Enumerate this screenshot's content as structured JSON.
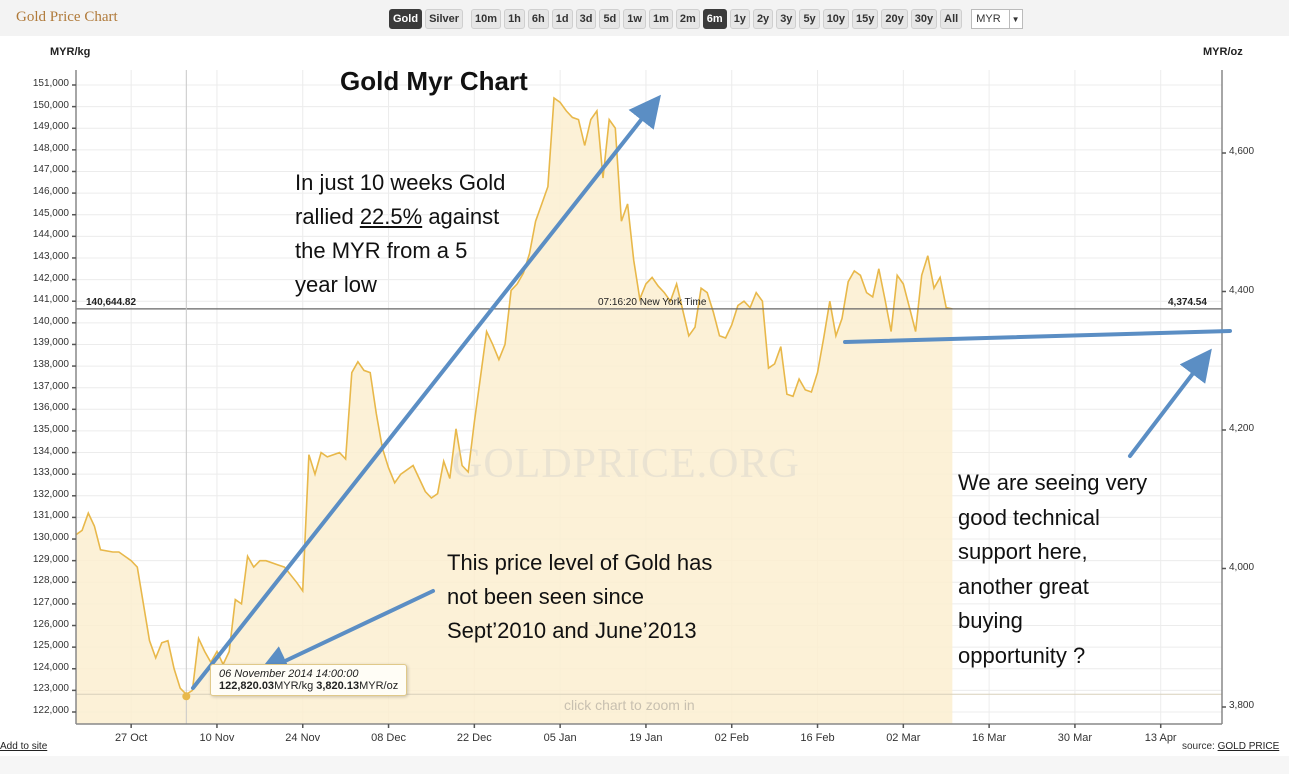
{
  "header": {
    "app_title": "Gold Price Chart",
    "metal_buttons": [
      {
        "label": "Gold",
        "active": true
      },
      {
        "label": "Silver",
        "active": false
      }
    ],
    "range_buttons": [
      {
        "label": "10m",
        "active": false
      },
      {
        "label": "1h",
        "active": false
      },
      {
        "label": "6h",
        "active": false
      },
      {
        "label": "1d",
        "active": false
      },
      {
        "label": "3d",
        "active": false
      },
      {
        "label": "5d",
        "active": false
      },
      {
        "label": "1w",
        "active": false
      },
      {
        "label": "1m",
        "active": false
      },
      {
        "label": "2m",
        "active": false
      },
      {
        "label": "6m",
        "active": true
      },
      {
        "label": "1y",
        "active": false
      },
      {
        "label": "2y",
        "active": false
      },
      {
        "label": "3y",
        "active": false
      },
      {
        "label": "5y",
        "active": false
      },
      {
        "label": "10y",
        "active": false
      },
      {
        "label": "15y",
        "active": false
      },
      {
        "label": "20y",
        "active": false
      },
      {
        "label": "30y",
        "active": false
      },
      {
        "label": "All",
        "active": false
      }
    ],
    "currency_select": "MYR",
    "caret_icon": "chevron-down-icon"
  },
  "chart_data": {
    "type": "area",
    "title": "Gold Myr Chart",
    "ylabel_left": "MYR/kg",
    "ylabel_right": "MYR/oz",
    "ylim_left": [
      121500,
      151800
    ],
    "yticks_left": [
      "151,000",
      "150,000",
      "149,000",
      "148,000",
      "147,000",
      "146,000",
      "145,000",
      "144,000",
      "143,000",
      "142,000",
      "141,000",
      "140,000",
      "139,000",
      "138,000",
      "137,000",
      "136,000",
      "135,000",
      "134,000",
      "133,000",
      "132,000",
      "131,000",
      "130,000",
      "129,000",
      "128,000",
      "127,000",
      "126,000",
      "125,000",
      "124,000",
      "123,000",
      "122,000"
    ],
    "yticks_left_values": [
      151000,
      150000,
      149000,
      148000,
      147000,
      146000,
      145000,
      144000,
      143000,
      142000,
      141000,
      140000,
      139000,
      138000,
      137000,
      136000,
      135000,
      134000,
      133000,
      132000,
      131000,
      130000,
      129000,
      128000,
      127000,
      126000,
      125000,
      124000,
      123000,
      122000
    ],
    "yticks_right": [
      "4,600",
      "4,400",
      "4,200",
      "4,000",
      "3,800"
    ],
    "yticks_right_values": [
      4600,
      4400,
      4200,
      4000,
      3800
    ],
    "xticks": [
      "27 Oct",
      "10 Nov",
      "24 Nov",
      "08 Dec",
      "22 Dec",
      "05 Jan",
      "19 Jan",
      "02 Feb",
      "16 Feb",
      "02 Mar",
      "16 Mar",
      "30 Mar",
      "13 Apr"
    ],
    "xticks_day": [
      0,
      14,
      28,
      42,
      56,
      70,
      84,
      98,
      112,
      126,
      140,
      154,
      168
    ],
    "x_range_days": [
      -9,
      178
    ],
    "grid": true,
    "series": [
      {
        "name": "Gold MYR/kg",
        "color": "#e8b84a",
        "fill": "#fcefd0",
        "points_day_value": [
          [
            -9,
            130200
          ],
          [
            -8,
            130400
          ],
          [
            -7,
            131200
          ],
          [
            -6,
            130600
          ],
          [
            -5,
            129500
          ],
          [
            -3,
            129400
          ],
          [
            -2,
            129400
          ],
          [
            0,
            129000
          ],
          [
            1,
            128700
          ],
          [
            2,
            127000
          ],
          [
            3,
            125300
          ],
          [
            4,
            124500
          ],
          [
            5,
            125200
          ],
          [
            6,
            125300
          ],
          [
            7,
            124000
          ],
          [
            8,
            123100
          ],
          [
            9,
            122820
          ],
          [
            10,
            123000
          ],
          [
            11,
            125400
          ],
          [
            12,
            124800
          ],
          [
            13,
            124300
          ],
          [
            14,
            124800
          ],
          [
            15,
            124200
          ],
          [
            16,
            124800
          ],
          [
            17,
            127200
          ],
          [
            18,
            127000
          ],
          [
            19,
            129200
          ],
          [
            20,
            128700
          ],
          [
            21,
            129000
          ],
          [
            22,
            129000
          ],
          [
            24,
            128800
          ],
          [
            25,
            128700
          ],
          [
            27,
            128000
          ],
          [
            28,
            127600
          ],
          [
            29,
            133900
          ],
          [
            30,
            133000
          ],
          [
            31,
            134000
          ],
          [
            32,
            133800
          ],
          [
            34,
            134000
          ],
          [
            35,
            133700
          ],
          [
            36,
            137700
          ],
          [
            37,
            138200
          ],
          [
            38,
            137800
          ],
          [
            39,
            137700
          ],
          [
            40,
            135800
          ],
          [
            41,
            134200
          ],
          [
            42,
            133300
          ],
          [
            43,
            132600
          ],
          [
            44,
            133000
          ],
          [
            46,
            133400
          ],
          [
            47,
            132800
          ],
          [
            48,
            132200
          ],
          [
            49,
            131900
          ],
          [
            50,
            132100
          ],
          [
            51,
            133600
          ],
          [
            52,
            132800
          ],
          [
            53,
            135100
          ],
          [
            54,
            133400
          ],
          [
            55,
            133100
          ],
          [
            56,
            135400
          ],
          [
            57,
            137500
          ],
          [
            58,
            139600
          ],
          [
            59,
            139000
          ],
          [
            60,
            138300
          ],
          [
            61,
            139000
          ],
          [
            62,
            141500
          ],
          [
            63,
            141800
          ],
          [
            64,
            142300
          ],
          [
            65,
            143200
          ],
          [
            66,
            144700
          ],
          [
            67,
            145500
          ],
          [
            68,
            146300
          ],
          [
            69,
            150400
          ],
          [
            70,
            150200
          ],
          [
            71,
            149800
          ],
          [
            72,
            149500
          ],
          [
            73,
            149400
          ],
          [
            74,
            148200
          ],
          [
            75,
            149400
          ],
          [
            76,
            149800
          ],
          [
            77,
            146700
          ],
          [
            78,
            149400
          ],
          [
            79,
            149000
          ],
          [
            80,
            144700
          ],
          [
            81,
            145500
          ],
          [
            82,
            142900
          ],
          [
            83,
            141100
          ],
          [
            84,
            141800
          ],
          [
            85,
            142100
          ],
          [
            86,
            141700
          ],
          [
            87,
            141400
          ],
          [
            88,
            141000
          ],
          [
            89,
            141800
          ],
          [
            90,
            140600
          ],
          [
            91,
            139400
          ],
          [
            92,
            139800
          ],
          [
            93,
            141600
          ],
          [
            94,
            141400
          ],
          [
            95,
            140500
          ],
          [
            96,
            139400
          ],
          [
            97,
            139300
          ],
          [
            98,
            139900
          ],
          [
            99,
            140800
          ],
          [
            100,
            141000
          ],
          [
            101,
            140700
          ],
          [
            102,
            141400
          ],
          [
            103,
            141000
          ],
          [
            104,
            137900
          ],
          [
            105,
            138100
          ],
          [
            106,
            138900
          ],
          [
            107,
            136700
          ],
          [
            108,
            136600
          ],
          [
            109,
            137400
          ],
          [
            110,
            136900
          ],
          [
            111,
            136800
          ],
          [
            112,
            137700
          ],
          [
            113,
            139300
          ],
          [
            114,
            141000
          ],
          [
            115,
            139400
          ],
          [
            116,
            140200
          ],
          [
            117,
            141900
          ],
          [
            118,
            142400
          ],
          [
            119,
            142200
          ],
          [
            120,
            141400
          ],
          [
            121,
            141200
          ],
          [
            122,
            142500
          ],
          [
            123,
            141100
          ],
          [
            124,
            139600
          ],
          [
            125,
            142200
          ],
          [
            126,
            141800
          ],
          [
            127,
            140700
          ],
          [
            128,
            139600
          ],
          [
            129,
            142200
          ],
          [
            130,
            143100
          ],
          [
            131,
            141600
          ],
          [
            132,
            142100
          ],
          [
            133,
            140700
          ],
          [
            134,
            140644.82
          ]
        ]
      }
    ],
    "current_price_kg": "140,644.82",
    "current_price_oz": "4,374.54",
    "current_price_value": 140644.82,
    "current_time": "07:16:20 New York Time",
    "tooltip": {
      "date": "06 November 2014 14:00:00",
      "kg_value": "122,820.03",
      "kg_unit": "MYR/kg",
      "oz_value": "3,820.13",
      "oz_unit": "MYR/oz",
      "point_day": 9,
      "point_value": 122820.03
    },
    "annotations": {
      "rally_line1": "In just 10 weeks Gold",
      "rally_line2a": "rallied ",
      "rally_pct": "22.5%",
      "rally_line2b": " against",
      "rally_line3": "the MYR from a 5",
      "rally_line4": "year low",
      "level_line1": "This price level of Gold has",
      "level_line2": "not been seen since",
      "level_line3": "Sept’2010 and June’2013",
      "support_line1": "We are seeing very",
      "support_line2": "good technical",
      "support_line3": "support here,",
      "support_line4": "another great",
      "support_line5": "buying",
      "support_line6": "opportunity ?"
    },
    "arrow_color": "#5b8ec4"
  },
  "footer": {
    "zoom_hint": "click chart to zoom in",
    "add_to_site": "Add to site",
    "source_prefix": "source: ",
    "source_link": "GOLD PRICE",
    "watermark": "GOLDPRICE.ORG"
  }
}
